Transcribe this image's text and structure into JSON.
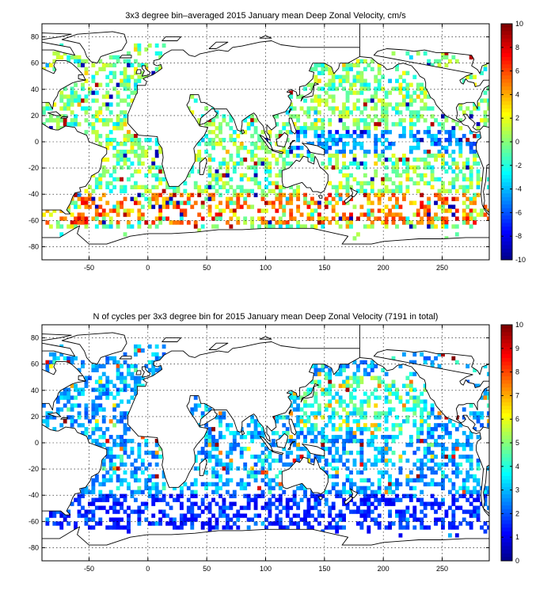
{
  "figure": {
    "panels": [
      {
        "title": "3x3 degree bin–averaged 2015 January mean Deep Zonal Velocity, cm/s",
        "colorbar_ticks": [
          "10",
          "8",
          "6",
          "4",
          "2",
          "0",
          "-2",
          "-4",
          "-6",
          "-8",
          "-10"
        ]
      },
      {
        "title": "N of cycles per 3x3 degree bin for 2015 January mean Deep Zonal Velocity (7191 in total)",
        "colorbar_ticks": [
          "10",
          "9",
          "8",
          "7",
          "6",
          "5",
          "4",
          "3",
          "2",
          "1",
          "0"
        ]
      }
    ],
    "x_tick_labels": [
      "-50",
      "0",
      "50",
      "100",
      "150",
      "200",
      "250"
    ],
    "y_tick_labels": [
      "80",
      "60",
      "40",
      "20",
      "0",
      "-20",
      "-40",
      "-60",
      "-80"
    ]
  },
  "chart_data": [
    {
      "type": "heatmap",
      "title": "3x3 degree bin–averaged 2015 January mean Deep Zonal Velocity, cm/s",
      "xlabel": "",
      "ylabel": "",
      "units": "cm/s",
      "xlim": [
        -90,
        290
      ],
      "ylim": [
        -90,
        90
      ],
      "x_ticks": [
        -50,
        0,
        50,
        100,
        150,
        200,
        250
      ],
      "y_ticks": [
        80,
        60,
        40,
        20,
        0,
        -20,
        -40,
        -60,
        -80
      ],
      "bin_size_deg": 3,
      "colormap": "jet",
      "clim": [
        -10,
        10
      ],
      "colorbar_ticks": [
        10,
        8,
        6,
        4,
        2,
        0,
        -2,
        -4,
        -6,
        -8,
        -10
      ],
      "grid": true,
      "note_regions": [
        {
          "lon": [
            -45,
            0
          ],
          "lat": [
            20,
            65
          ],
          "value_range": [
            -3,
            3
          ]
        },
        {
          "lon": [
            -20,
            110
          ],
          "lat": [
            -60,
            -40
          ],
          "value_range": [
            4,
            10
          ]
        },
        {
          "lon": [
            150,
            270
          ],
          "lat": [
            -62,
            -50
          ],
          "value_range": [
            4,
            10
          ]
        },
        {
          "lon": [
            130,
            260
          ],
          "lat": [
            -10,
            10
          ],
          "value_range": [
            -10,
            -4
          ]
        }
      ]
    },
    {
      "type": "heatmap",
      "title": "N of cycles per 3x3 degree bin for 2015 January mean Deep Zonal Velocity (7191 in total)",
      "xlabel": "",
      "ylabel": "",
      "xlim": [
        -90,
        290
      ],
      "ylim": [
        -90,
        90
      ],
      "x_ticks": [
        -50,
        0,
        50,
        100,
        150,
        200,
        250
      ],
      "y_ticks": [
        80,
        60,
        40,
        20,
        0,
        -20,
        -40,
        -60,
        -80
      ],
      "bin_size_deg": 3,
      "colormap": "jet",
      "clim": [
        0,
        10
      ],
      "colorbar_ticks": [
        10,
        9,
        8,
        7,
        6,
        5,
        4,
        3,
        2,
        1,
        0
      ],
      "total_cycles": 7191,
      "grid": true
    }
  ]
}
